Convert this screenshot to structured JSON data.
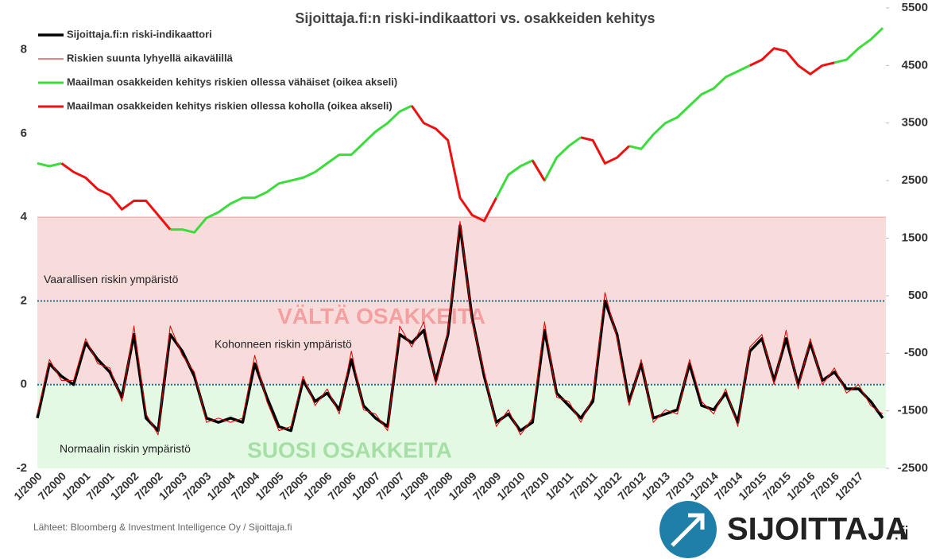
{
  "chart_data": {
    "type": "line",
    "title": "Sijoittaja.fi:n riski-indikaattori vs. osakkeiden kehitys",
    "source": "Lähteet: Bloomberg & Investment Intelligence Oy / Sijoittaja.fi",
    "logo": {
      "name": "SIJOITTAJA",
      "suffix": ".fi"
    },
    "categories": [
      "1/2000",
      null,
      "7/2000",
      null,
      "1/2001",
      null,
      "7/2001",
      null,
      "1/2002",
      null,
      "7/2002",
      null,
      "1/2003",
      null,
      "7/2003",
      null,
      "1/2004",
      null,
      "7/2004",
      null,
      "1/2005",
      null,
      "7/2005",
      null,
      "1/2006",
      null,
      "7/2006",
      null,
      "1/2007",
      null,
      "7/2007",
      null,
      "1/2008",
      null,
      "7/2008",
      null,
      "1/2009",
      null,
      "7/2009",
      null,
      "1/2010",
      null,
      "7/2010",
      null,
      "1/2011",
      null,
      "7/2011",
      null,
      "1/2012",
      null,
      "7/2012",
      null,
      "1/2013",
      null,
      "7/2013",
      null,
      "1/2014",
      null,
      "7/2014",
      null,
      "1/2015",
      null,
      "7/2015",
      null,
      "1/2016",
      null,
      "7/2016",
      null,
      "1/2017",
      null,
      null
    ],
    "ylim": [
      -2,
      9
    ],
    "yticks": [
      -2,
      0,
      2,
      4,
      6,
      8
    ],
    "y2lim": [
      -2500,
      5500
    ],
    "y2ticks": [
      -2500,
      -1500,
      -500,
      500,
      1500,
      2500,
      3500,
      4500,
      5500
    ],
    "bands": [
      {
        "label": "VÄLTÄ OSAKKEITA",
        "from": 0,
        "to": 4,
        "color": "#f8dcdc",
        "text_color": "#f4a0a0"
      },
      {
        "label": "SUOSI OSAKKEITA",
        "from": -2,
        "to": 0,
        "color": "#e4f9e4",
        "text_color": "#a6dfa6"
      }
    ],
    "reference_lines": [
      2,
      0
    ],
    "annotations": [
      "Vaarallisen riskin ympäristö",
      "Kohonneen riskin ympäristö",
      "Normaalin riskin ympäristö"
    ],
    "series": [
      {
        "name": "Sijoittaja.fi:n riski-indikaattori",
        "color": "#000000",
        "width": 3.5,
        "values": [
          -0.8,
          0.5,
          0.2,
          0.0,
          1.0,
          0.6,
          0.3,
          -0.3,
          1.2,
          -0.8,
          -1.1,
          1.2,
          0.8,
          0.2,
          -0.8,
          -0.9,
          -0.8,
          -0.9,
          0.5,
          -0.3,
          -1.0,
          -1.1,
          0.1,
          -0.4,
          -0.2,
          -0.6,
          0.6,
          -0.5,
          -0.8,
          -1.0,
          1.2,
          1.0,
          1.3,
          0.1,
          1.2,
          3.8,
          1.6,
          0.2,
          -0.9,
          -0.7,
          -1.1,
          -0.9,
          1.3,
          -0.2,
          -0.5,
          -0.8,
          -0.4,
          2.0,
          1.2,
          -0.4,
          0.5,
          -0.8,
          -0.7,
          -0.6,
          0.5,
          -0.5,
          -0.6,
          -0.2,
          -0.9,
          0.8,
          1.1,
          0.1,
          1.1,
          0.0,
          1.0,
          0.1,
          0.3,
          -0.1,
          -0.1,
          -0.4,
          -0.8
        ]
      },
      {
        "name": "Riskien suunta lyhyellä aikavälillä",
        "color": "#e00000",
        "width": 1,
        "values": [
          -0.7,
          0.6,
          0.1,
          0.1,
          1.1,
          0.5,
          0.4,
          -0.4,
          1.4,
          -0.7,
          -1.2,
          1.4,
          0.7,
          0.3,
          -0.9,
          -0.8,
          -0.9,
          -0.8,
          0.7,
          -0.4,
          -1.1,
          -1.0,
          0.2,
          -0.5,
          -0.1,
          -0.7,
          0.8,
          -0.6,
          -0.7,
          -1.1,
          1.4,
          0.9,
          1.5,
          0.0,
          1.3,
          3.9,
          1.5,
          0.3,
          -1.0,
          -0.6,
          -1.2,
          -0.8,
          1.5,
          -0.3,
          -0.4,
          -0.9,
          -0.3,
          2.2,
          1.1,
          -0.5,
          0.6,
          -0.9,
          -0.6,
          -0.7,
          0.6,
          -0.4,
          -0.7,
          -0.1,
          -1.0,
          0.9,
          1.2,
          0.0,
          1.3,
          -0.1,
          1.1,
          0.0,
          0.4,
          -0.2,
          0.0,
          -0.5,
          -0.7
        ]
      },
      {
        "name": "Maailman osakkeiden kehitys riskien ollessa vähäiset (oikea akseli)",
        "color": "#3ddc3d",
        "width": 3,
        "axis": "y2",
        "values": [
          2800,
          2750,
          2800,
          null,
          null,
          null,
          null,
          null,
          null,
          null,
          null,
          1650,
          1650,
          1600,
          1850,
          1950,
          2100,
          2200,
          2200,
          2300,
          2450,
          2500,
          2550,
          2650,
          2800,
          2950,
          2950,
          3150,
          3350,
          3500,
          3700,
          3800,
          null,
          null,
          null,
          null,
          null,
          null,
          2200,
          2600,
          2750,
          2850,
          2500,
          2900,
          3100,
          3250,
          null,
          null,
          null,
          3100,
          3050,
          3300,
          3500,
          3600,
          3800,
          4000,
          4100,
          4300,
          4400,
          4500,
          null,
          null,
          null,
          null,
          null,
          null,
          4550,
          4600,
          4800,
          4950,
          5150
        ]
      },
      {
        "name": "Maailman osakkeiden kehitys riskien ollessa koholla (oikea akseli)",
        "color": "#ee1111",
        "width": 3,
        "axis": "y2",
        "values": [
          null,
          null,
          2800,
          2650,
          2550,
          2350,
          2250,
          2000,
          2150,
          2150,
          1900,
          1650,
          null,
          null,
          null,
          null,
          null,
          null,
          null,
          null,
          null,
          null,
          null,
          null,
          null,
          null,
          null,
          null,
          null,
          null,
          null,
          3800,
          3500,
          3400,
          3200,
          2200,
          1900,
          1800,
          2200,
          null,
          null,
          2850,
          2500,
          null,
          null,
          3250,
          3200,
          2800,
          2900,
          3100,
          null,
          null,
          null,
          null,
          null,
          null,
          null,
          null,
          null,
          4500,
          4600,
          4800,
          4750,
          4500,
          4350,
          4500,
          4550,
          null,
          null,
          null,
          null
        ]
      }
    ]
  }
}
